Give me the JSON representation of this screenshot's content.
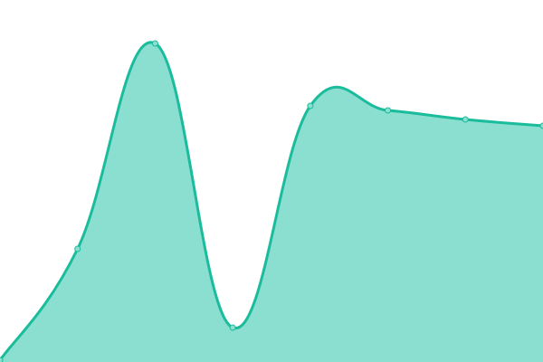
{
  "chart_data": {
    "type": "area",
    "x": [
      0,
      1,
      2,
      3,
      4,
      5,
      6,
      7
    ],
    "values": [
      2,
      125,
      352,
      38,
      283,
      278,
      268,
      261
    ],
    "ylim": [
      0,
      400
    ],
    "grid": false,
    "legend": "none",
    "smooth": true,
    "colors": {
      "line": "#1abc9c",
      "fill": "#8adfd0",
      "point_fill": "#8adfd0"
    }
  }
}
